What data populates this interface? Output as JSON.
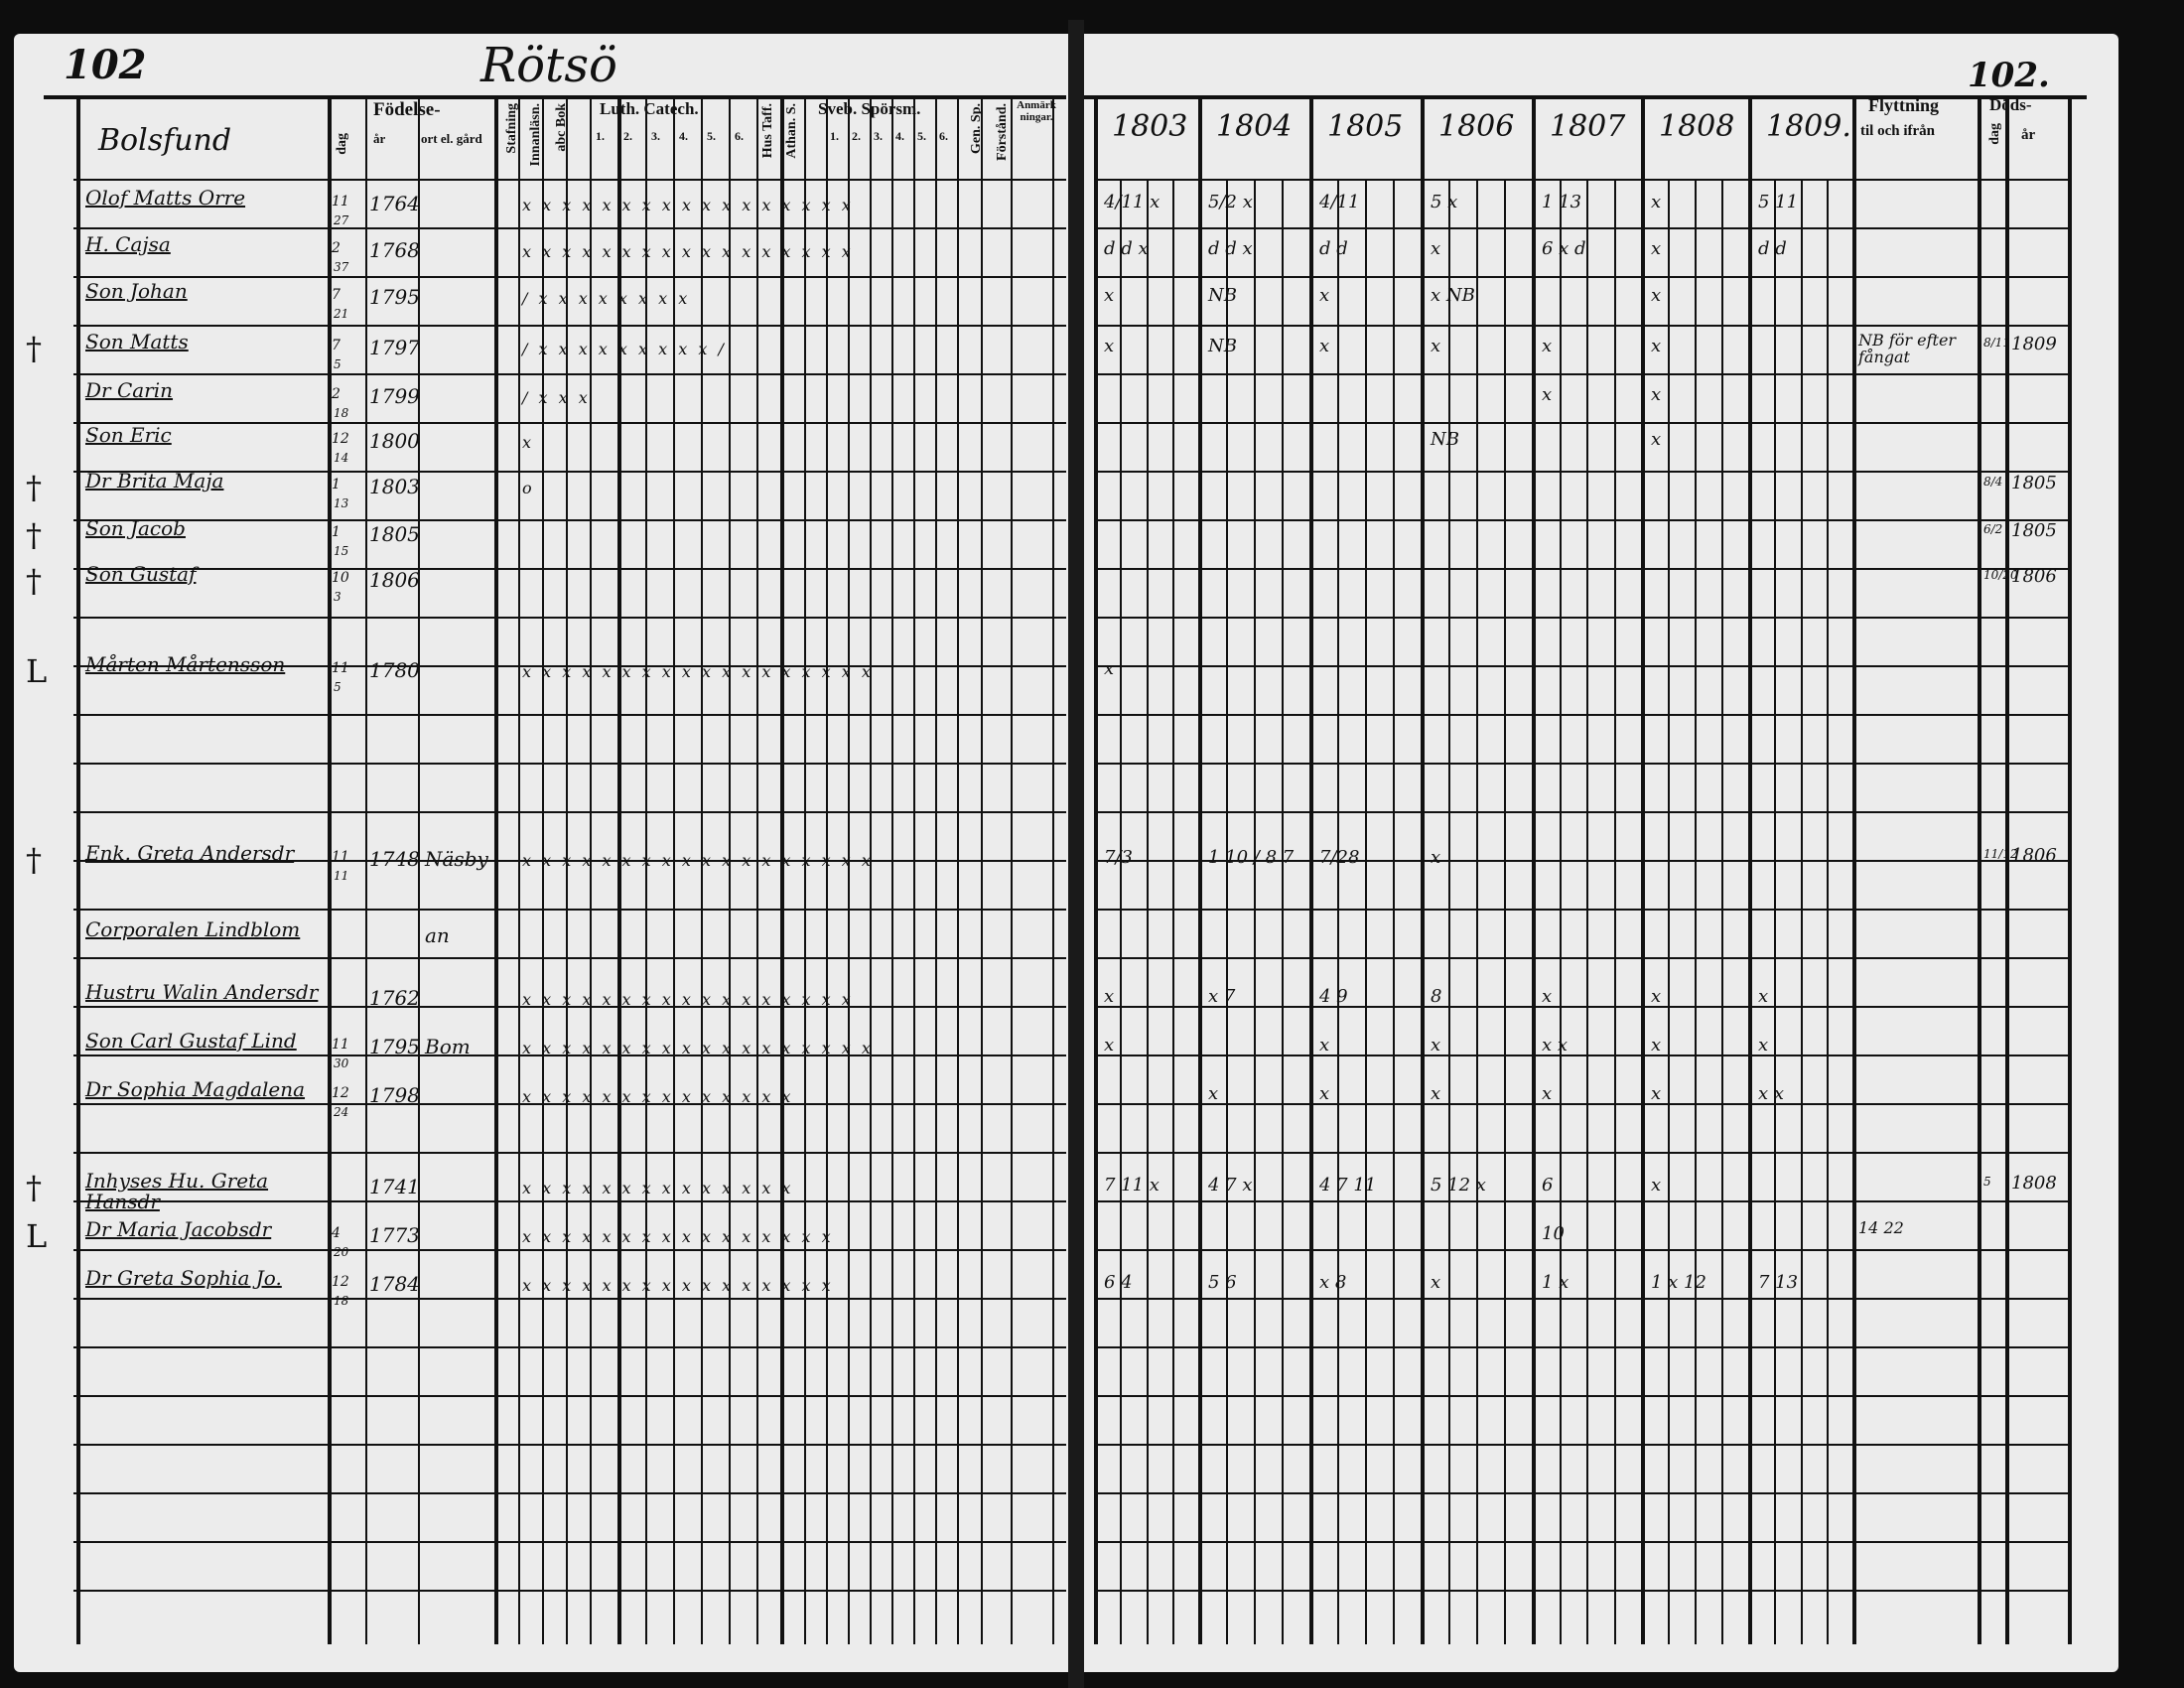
{
  "left_page": {
    "page_number": "102",
    "village": "Rötsö",
    "headers": {
      "household": "Bolsfund",
      "birth": "Födelse-",
      "birth_day": "dag",
      "birth_year": "år",
      "birth_place": "ort el. gård",
      "confirmation": "Stafning",
      "reading": "Innanläsn.",
      "abc_book": "abc Bok",
      "luther_catechism": "Luth. Catech.",
      "luther_cols": [
        "1.",
        "2.",
        "3.",
        "4.",
        "5.",
        "6."
      ],
      "house_table": "Hus Taff.",
      "athanasian": "Athan. S.",
      "swebilius": "Sveb. Spörsm.",
      "swebilius_cols": [
        "1.",
        "2.",
        "3.",
        "4.",
        "5.",
        "6."
      ],
      "gen_sp": "Gen. Sp.",
      "understanding": "Förstånd.",
      "remarks": "Anmärkningar."
    },
    "entries": [
      {
        "mark": "",
        "name": "Olof Matts Orre",
        "day": "11",
        "month": "27",
        "year": "1764",
        "place": "",
        "marks": "x x x x x x x x x x x x x x x x x"
      },
      {
        "mark": "",
        "name": "H. Cajsa",
        "day": "2",
        "month": "37",
        "year": "1768",
        "place": "",
        "marks": "x x x x x x x x x x x x x x x x x"
      },
      {
        "mark": "",
        "name": "Son Johan",
        "day": "7",
        "month": "21",
        "year": "1795",
        "place": "",
        "marks": "/ x x x x x x x x"
      },
      {
        "mark": "†",
        "name": "Son Matts",
        "day": "7",
        "month": "5",
        "year": "1797",
        "place": "",
        "marks": "/ x x x x x x x x x /"
      },
      {
        "mark": "",
        "name": "Dr Carin",
        "day": "2",
        "month": "18",
        "year": "1799",
        "place": "",
        "marks": "/ x x x"
      },
      {
        "mark": "",
        "name": "Son Eric",
        "day": "12",
        "month": "14",
        "year": "1800",
        "place": "",
        "marks": "x"
      },
      {
        "mark": "†",
        "name": "Dr Brita Maja",
        "day": "1",
        "month": "13",
        "year": "1803",
        "place": "",
        "marks": "o"
      },
      {
        "mark": "†",
        "name": "Son Jacob",
        "day": "1",
        "month": "15",
        "year": "1805",
        "place": "",
        "marks": ""
      },
      {
        "mark": "†",
        "name": "Son Gustaf",
        "day": "10",
        "month": "3",
        "year": "1806",
        "place": "",
        "marks": ""
      },
      {
        "mark": "L",
        "name": "Mårten Mårtensson",
        "day": "11",
        "month": "5",
        "year": "1780",
        "place": "",
        "marks": "x x x x x x x x x x x x x x x x x x"
      },
      {
        "mark": "†",
        "name": "Enk. Greta Andersdr",
        "day": "11",
        "month": "11",
        "year": "1748",
        "place": "Näsby",
        "marks": "x x x x x x x x x x x x x x x x x x"
      },
      {
        "mark": "",
        "name": "Corporalen Lindblom",
        "day": "",
        "month": "",
        "year": "",
        "place": "an",
        "marks": ""
      },
      {
        "mark": "",
        "name": "Hustru Walin Andersdr",
        "day": "",
        "month": "",
        "year": "1762",
        "place": "",
        "marks": "x x x x x x x x x x x x x x x x x"
      },
      {
        "mark": "",
        "name": "Son Carl Gustaf Lind",
        "day": "11",
        "month": "30",
        "year": "1795",
        "place": "Bom",
        "marks": "x x x x x x x x x x x x x x x x x x"
      },
      {
        "mark": "",
        "name": "Dr Sophia Magdalena",
        "day": "12",
        "month": "24",
        "year": "1798",
        "place": "",
        "marks": "x x x x x x x x x x x x x x"
      },
      {
        "mark": "†",
        "name": "Inhyses Hu. Greta Hansdr",
        "day": "",
        "month": "",
        "year": "1741",
        "place": "",
        "marks": "x x x x x x x x x x x x x x"
      },
      {
        "mark": "L",
        "name": "Dr Maria Jacobsdr",
        "day": "4",
        "month": "20",
        "year": "1773",
        "place": "",
        "marks": "x x x x x x x x x x x x x x x x"
      },
      {
        "mark": "",
        "name": "Dr Greta Sophia Jo.",
        "day": "12",
        "month": "18",
        "year": "1784",
        "place": "",
        "marks": "x x x x x x x x x x x x x x x x"
      }
    ]
  },
  "right_page": {
    "page_number": "102.",
    "years": [
      "1803",
      "1804",
      "1805",
      "1806",
      "1807",
      "1808",
      "1809."
    ],
    "moving_header": "Flyttning",
    "moving_sub": "til och ifrån",
    "death_header": "Döds-",
    "death_day": "dag",
    "death_year": "år",
    "rows": [
      {
        "years": [
          "4/11 x",
          "5/2 x",
          "4/11",
          "5 x",
          "1 13",
          "x",
          "5 11"
        ],
        "moving": "",
        "death_day": "",
        "death_year": ""
      },
      {
        "years": [
          "d d x",
          "d d x",
          "d d",
          "x",
          "6 x d",
          "x",
          "d d"
        ],
        "moving": "",
        "death_day": "",
        "death_year": ""
      },
      {
        "years": [
          "x",
          "NB",
          "x",
          "x NB",
          "",
          "x",
          ""
        ],
        "moving": "",
        "death_day": "",
        "death_year": ""
      },
      {
        "years": [
          "x",
          "NB",
          "x",
          "x",
          "x",
          "x",
          ""
        ],
        "moving": "NB för efter fångat",
        "death_day": "8/11",
        "death_year": "1809"
      },
      {
        "years": [
          "",
          "",
          "",
          "",
          "x",
          "x",
          ""
        ],
        "moving": "",
        "death_day": "",
        "death_year": ""
      },
      {
        "years": [
          "",
          "",
          "",
          "NB",
          "",
          "x",
          ""
        ],
        "moving": "",
        "death_day": "",
        "death_year": ""
      },
      {
        "years": [
          "",
          "",
          "",
          "",
          "",
          "",
          ""
        ],
        "moving": "",
        "death_day": "8/4",
        "death_year": "1805"
      },
      {
        "years": [
          "",
          "",
          "",
          "",
          "",
          "",
          ""
        ],
        "moving": "",
        "death_day": "6/2",
        "death_year": "1805"
      },
      {
        "years": [
          "",
          "",
          "",
          "",
          "",
          "",
          ""
        ],
        "moving": "",
        "death_day": "10/20",
        "death_year": "1806"
      },
      {
        "years": [
          "x",
          "",
          "",
          "",
          "",
          "",
          ""
        ],
        "moving": "",
        "death_day": "",
        "death_year": ""
      },
      {
        "years": [
          "7/3",
          "1 10 / 8 7",
          "7/28",
          "x",
          "",
          "",
          ""
        ],
        "moving": "",
        "death_day": "11/12",
        "death_year": "1806"
      },
      {
        "years": [
          "",
          "",
          "",
          "",
          "",
          "",
          ""
        ],
        "moving": "",
        "death_day": "",
        "death_year": ""
      },
      {
        "years": [
          "x",
          "x 7",
          "4 9",
          "8",
          "x",
          "x",
          "x"
        ],
        "moving": "",
        "death_day": "",
        "death_year": ""
      },
      {
        "years": [
          "x",
          "",
          "x",
          "x",
          "x x",
          "x",
          "x"
        ],
        "moving": "",
        "death_day": "",
        "death_year": ""
      },
      {
        "years": [
          "",
          "x",
          "x",
          "x",
          "x",
          "x",
          "x x"
        ],
        "moving": "",
        "death_day": "",
        "death_year": ""
      },
      {
        "years": [
          "7 11 x",
          "4 7 x",
          "4 7 11",
          "5 12 x",
          "6",
          "x",
          ""
        ],
        "moving": "",
        "death_day": "5",
        "death_year": "1808"
      },
      {
        "years": [
          "",
          "",
          "",
          "",
          "10",
          "",
          ""
        ],
        "moving": "14 22",
        "death_day": "",
        "death_year": ""
      },
      {
        "years": [
          "6 4",
          "5 6",
          "x 8",
          "x",
          "1 x",
          "1 x 12",
          "7 13"
        ],
        "moving": "",
        "death_day": "",
        "death_year": ""
      }
    ]
  }
}
